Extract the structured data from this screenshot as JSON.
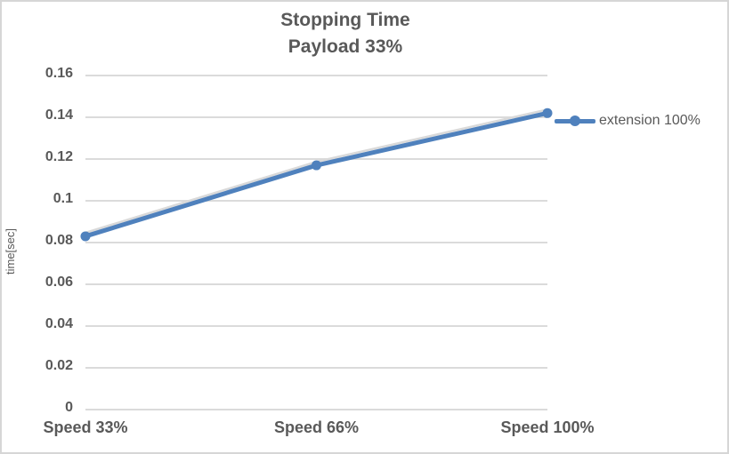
{
  "chart": {
    "title_line1": "Stopping Time",
    "title_line2": "Payload 33%",
    "y_axis_title": "time[sec]",
    "legend_label": "extension 100%"
  },
  "chart_data": {
    "type": "line",
    "title": "Stopping Time Payload 33%",
    "categories": [
      "Speed 33%",
      "Speed 66%",
      "Speed 100%"
    ],
    "series": [
      {
        "name": "extension 100%",
        "values": [
          0.083,
          0.117,
          0.142
        ]
      }
    ],
    "xlabel": "",
    "ylabel": "time[sec]",
    "ylim": [
      0,
      0.16
    ],
    "ytick_values": [
      0,
      0.02,
      0.04,
      0.06,
      0.08,
      0.1,
      0.12,
      0.14,
      0.16
    ],
    "ytick_labels": [
      "0",
      "0.02",
      "0.04",
      "0.06",
      "0.08",
      "0.1",
      "0.12",
      "0.14",
      "0.16"
    ],
    "grid": true,
    "legend_position": "right",
    "marker": "circle"
  },
  "colors": {
    "series": "#4F81BD",
    "series_sheen": "#d9d9d9",
    "gridline": "#dbdbdb",
    "text": "#595959",
    "frame_border": "#d6d6d6"
  }
}
